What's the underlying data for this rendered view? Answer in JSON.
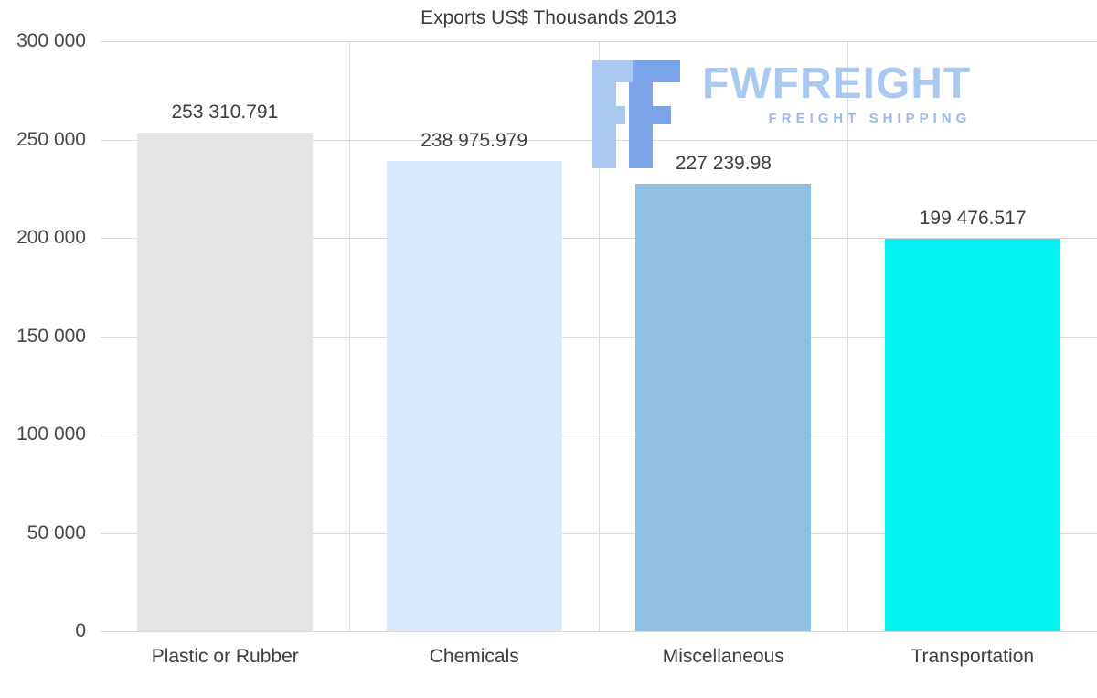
{
  "chart_data": {
    "type": "bar",
    "title": "Exports US$ Thousands 2013",
    "categories": [
      "Plastic or Rubber",
      "Chemicals",
      "Miscellaneous",
      "Transportation"
    ],
    "values": [
      253310.791,
      238975.979,
      227239.98,
      199476.517
    ],
    "value_labels": [
      "253 310.791",
      "238 975.979",
      "227 239.98",
      "199 476.517"
    ],
    "bar_colors": [
      "#e4e4e4",
      "#d9e9fb",
      "#8fc0e1",
      "#05f0f0"
    ],
    "xlabel": "",
    "ylabel": "",
    "ylim": [
      0,
      300000
    ],
    "ytick_step": 50000,
    "ytick_labels": [
      "0",
      "50 000",
      "100 000",
      "150 000",
      "200 000",
      "250 000",
      "300 000"
    ],
    "grid": "horizontal gridlines plus vertical category separators",
    "legend": "none"
  },
  "watermark": {
    "name": "FWFREIGHT",
    "tagline": "FREIGHT SHIPPING",
    "name_color": "#abc8f0",
    "tagline_color": "#9cb8ea",
    "logo_light": "#aac7f0",
    "logo_dark": "#7ba3e8",
    "logo_icon": "fwfreight-logo-icon"
  }
}
